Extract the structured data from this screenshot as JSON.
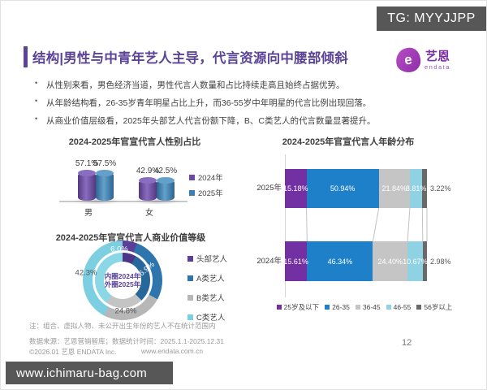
{
  "overlay": {
    "tg_badge": "TG: MYYJJPP",
    "bottom_bar_url": "www.ichimaru-bag.com"
  },
  "header": {
    "title": "结构|男性与中青年艺人主导，代言资源向中腰部倾斜",
    "logo": {
      "letter": "e",
      "name": "艺恩",
      "sub": "endata"
    }
  },
  "bullets": [
    "从性别来看，男色经济当道，男性代言人数量和占比持续走高且始终占据优势。",
    "从年龄结构看，26-35岁青年明星占比上升，而36-55岁中年明星的代言比例出现回落。",
    "从商业价值层级看，2025年头部艺人代言份额下降，B、C类艺人的代言数量显著提升。"
  ],
  "chart_data": [
    {
      "type": "bar",
      "style": "3d-cylinder",
      "title": "2024-2025年官宣代言人性别占比",
      "categories": [
        "男",
        "女"
      ],
      "series": [
        {
          "name": "2024年",
          "values": [
            57.1,
            42.9
          ],
          "labels": [
            "57.1%",
            "42.9%"
          ],
          "color": "#6b4ba1",
          "color_dark": "#53387f",
          "color_light": "#8a6cc0"
        },
        {
          "name": "2025年",
          "values": [
            57.5,
            42.5
          ],
          "labels": [
            "57.5%",
            "42.5%"
          ],
          "color": "#3f7fb8",
          "color_dark": "#2d6391",
          "color_light": "#63a1cb"
        }
      ],
      "legend_position": "right",
      "value_format": "percent"
    },
    {
      "type": "bar",
      "subtype": "horizontal-stacked",
      "title": "2024-2025年官宣代言人年龄分布",
      "categories": [
        "2025年",
        "2024年"
      ],
      "segments": [
        "25岁及以下",
        "26-35",
        "36-45",
        "46-55",
        "56岁以上"
      ],
      "segment_colors": [
        "#7230a3",
        "#1e80c8",
        "#c5c5c5",
        "#8ed2e3",
        "#696969"
      ],
      "series": [
        {
          "name": "2025年",
          "values": [
            15.18,
            50.94,
            21.84,
            8.81,
            3.22
          ],
          "labels": [
            "15.18%",
            "50.94%",
            "21.84%",
            "8.81%",
            "3.22%"
          ]
        },
        {
          "name": "2024年",
          "values": [
            15.61,
            46.34,
            24.4,
            10.67,
            2.98
          ],
          "labels": [
            "15.61%",
            "46.34%",
            "24.40%",
            "10.67%",
            "2.98%"
          ]
        }
      ],
      "legend_position": "bottom",
      "axis_max": 100
    },
    {
      "type": "pie",
      "subtype": "double-donut",
      "title": "2024-2025年官宣代言人商业价值等级",
      "segments": [
        "头部艺人",
        "A类艺人",
        "B类艺人",
        "C类艺人"
      ],
      "outer_ring_name": "2025年",
      "inner_ring_name": "2024年",
      "outer_2025_values": [
        6.0,
        26.9,
        24.8,
        42.3
      ],
      "outer_labels": [
        "6.0%",
        "26.9%",
        "24.8%",
        "42.3%"
      ],
      "inner_2024_values_estimated": [
        8,
        30,
        22,
        40
      ],
      "inner_labels_shown": false,
      "outer_colors": [
        "#5b3f99",
        "#2e74ad",
        "#b7b7b7",
        "#7ccfe0"
      ],
      "inner_colors": [
        "#4c3587",
        "#27679c",
        "#c4c4c4",
        "#8ad8e6"
      ],
      "center_label": [
        "内圈2024年",
        "外圈2025年"
      ],
      "legend_position": "right"
    }
  ],
  "footer": {
    "note": "注：组合、虚拟人物、未公开出生年份的艺人不在统计范围内",
    "source": "数据来源：艺恩营销智库；数据统计时间：2025.1.1-2025.12.31",
    "copyright": "©2026.01 艺恩 ENDATA Inc.",
    "website": "www.endata.com.cn",
    "page_number": "12"
  }
}
